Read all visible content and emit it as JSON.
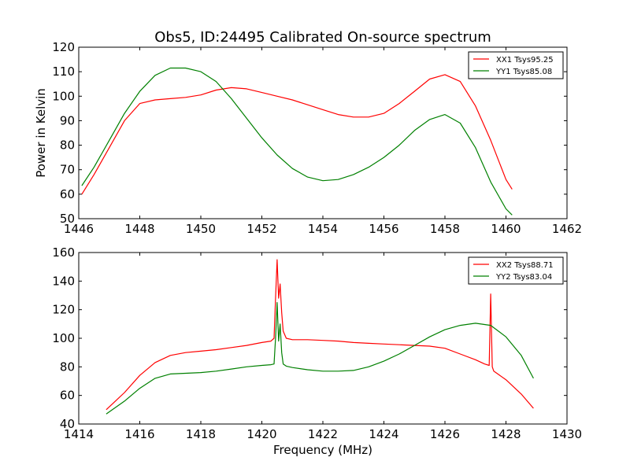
{
  "figure": {
    "title": "Obs5, ID:24495 Calibrated On-source spectrum",
    "xlabel": "Frequency (MHz)",
    "ylabel": "Power in Kelvin"
  },
  "chart_data": [
    {
      "type": "line",
      "title": "Obs5, ID:24495 Calibrated On-source spectrum",
      "xlabel": "",
      "ylabel": "Power in Kelvin",
      "xlim": [
        1446,
        1462
      ],
      "ylim": [
        50,
        120
      ],
      "xticks": [
        1446,
        1448,
        1450,
        1452,
        1454,
        1456,
        1458,
        1460,
        1462
      ],
      "yticks": [
        50,
        60,
        70,
        80,
        90,
        100,
        110,
        120
      ],
      "grid": false,
      "legend": "top-right",
      "series": [
        {
          "name": "XX1 Tsys95.25",
          "color": "#ff0000",
          "x": [
            1446.1,
            1446.5,
            1447.0,
            1447.5,
            1448.0,
            1448.5,
            1449.0,
            1449.5,
            1450.0,
            1450.5,
            1451.0,
            1451.5,
            1452.0,
            1452.5,
            1453.0,
            1453.5,
            1454.0,
            1454.5,
            1455.0,
            1455.5,
            1456.0,
            1456.5,
            1457.0,
            1457.5,
            1458.0,
            1458.5,
            1459.0,
            1459.5,
            1460.0,
            1460.2
          ],
          "y": [
            60,
            68,
            79,
            90,
            97,
            98.5,
            99,
            99.5,
            100.5,
            102.5,
            103.5,
            103,
            101.5,
            100,
            98.5,
            96.5,
            94.5,
            92.5,
            91.5,
            91.5,
            93,
            97,
            102,
            107,
            108.8,
            106,
            96,
            82,
            66,
            62
          ]
        },
        {
          "name": "YY1 Tsys85.08",
          "color": "#008000",
          "x": [
            1446.1,
            1446.5,
            1447.0,
            1447.5,
            1448.0,
            1448.5,
            1449.0,
            1449.5,
            1450.0,
            1450.5,
            1451.0,
            1451.5,
            1452.0,
            1452.5,
            1453.0,
            1453.5,
            1454.0,
            1454.5,
            1455.0,
            1455.5,
            1456.0,
            1456.5,
            1457.0,
            1457.5,
            1458.0,
            1458.5,
            1459.0,
            1459.5,
            1460.0,
            1460.2
          ],
          "y": [
            63.5,
            71,
            82,
            93,
            102,
            108.5,
            111.5,
            111.5,
            110,
            106,
            99,
            91,
            83,
            76,
            70.5,
            67,
            65.5,
            66,
            68,
            71,
            75,
            80,
            86,
            90.5,
            92.5,
            89,
            79,
            65,
            54,
            51.5
          ]
        }
      ]
    },
    {
      "type": "line",
      "title": "",
      "xlabel": "Frequency (MHz)",
      "ylabel": "",
      "xlim": [
        1414,
        1430
      ],
      "ylim": [
        40,
        160
      ],
      "xticks": [
        1414,
        1416,
        1418,
        1420,
        1422,
        1424,
        1426,
        1428,
        1430
      ],
      "yticks": [
        40,
        60,
        80,
        100,
        120,
        140,
        160
      ],
      "grid": false,
      "legend": "top-right",
      "series": [
        {
          "name": "XX2 Tsys88.71",
          "color": "#ff0000",
          "x": [
            1414.9,
            1415.5,
            1416.0,
            1416.5,
            1417.0,
            1417.5,
            1418.0,
            1418.5,
            1419.0,
            1419.5,
            1420.0,
            1420.3,
            1420.4,
            1420.45,
            1420.5,
            1420.55,
            1420.6,
            1420.65,
            1420.7,
            1420.8,
            1421.0,
            1421.5,
            1422.0,
            1422.5,
            1423.0,
            1423.5,
            1424.0,
            1424.5,
            1425.0,
            1425.5,
            1426.0,
            1426.5,
            1427.0,
            1427.3,
            1427.45,
            1427.5,
            1427.55,
            1427.6,
            1428.0,
            1428.5,
            1428.9
          ],
          "y": [
            50,
            62,
            74,
            83,
            88,
            90,
            91,
            92,
            93.5,
            95,
            97,
            98,
            100,
            128,
            155,
            128,
            138,
            118,
            105,
            100,
            99,
            99,
            98.5,
            98,
            97,
            96.5,
            96,
            95.5,
            95,
            94.5,
            93,
            89,
            85,
            82,
            81,
            131,
            80,
            77,
            71,
            61,
            51
          ]
        },
        {
          "name": "YY2 Tsys83.04",
          "color": "#008000",
          "x": [
            1414.9,
            1415.5,
            1416.0,
            1416.5,
            1417.0,
            1417.5,
            1418.0,
            1418.5,
            1419.0,
            1419.5,
            1420.0,
            1420.3,
            1420.4,
            1420.45,
            1420.5,
            1420.55,
            1420.6,
            1420.65,
            1420.7,
            1420.8,
            1421.0,
            1421.5,
            1422.0,
            1422.5,
            1423.0,
            1423.5,
            1424.0,
            1424.5,
            1425.0,
            1425.5,
            1426.0,
            1426.5,
            1427.0,
            1427.5,
            1428.0,
            1428.5,
            1428.9
          ],
          "y": [
            47,
            56,
            65,
            72,
            75,
            75.5,
            76,
            77,
            78.5,
            80,
            81,
            81.5,
            82,
            100,
            125,
            98,
            110,
            90,
            82,
            80.5,
            79.5,
            78,
            77,
            77,
            77.5,
            80,
            84,
            89,
            95,
            101,
            106,
            109,
            110.5,
            109,
            101,
            88,
            72
          ]
        }
      ]
    }
  ]
}
